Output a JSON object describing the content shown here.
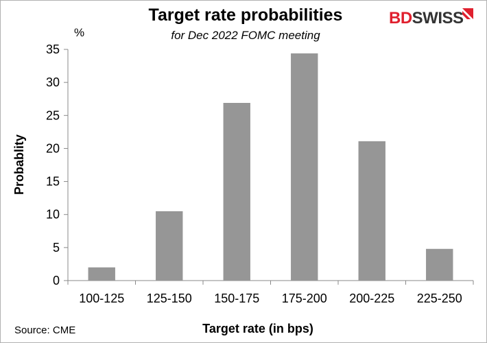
{
  "chart_data": {
    "type": "bar",
    "title": "Target rate probabilities",
    "subtitle": "for Dec 2022 FOMC meeting",
    "xlabel": "Target rate (in bps)",
    "ylabel": "Probablity",
    "y_unit": "%",
    "categories": [
      "100-125",
      "125-150",
      "150-175",
      "175-200",
      "200-225",
      "225-250"
    ],
    "values": [
      2.0,
      10.5,
      26.9,
      34.4,
      21.1,
      4.8
    ],
    "ylim": [
      0,
      35
    ],
    "yticks": [
      0,
      5,
      10,
      15,
      20,
      25,
      30,
      35
    ],
    "grid": false,
    "bar_color": "#969696"
  },
  "source": "Source: CME",
  "logo": {
    "part1": "BD",
    "part2": "SWISS",
    "color1": "#e0202e",
    "color2": "#333333"
  }
}
